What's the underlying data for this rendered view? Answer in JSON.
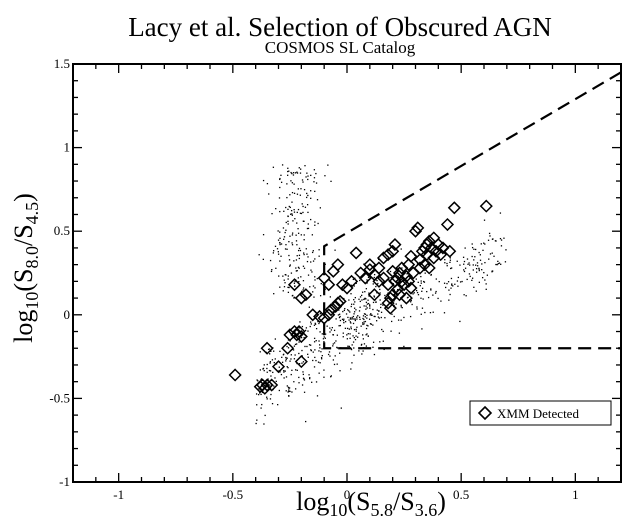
{
  "chart_data": {
    "type": "scatter",
    "title": "Lacy et al. Selection of Obscured AGN",
    "subtitle": "COSMOS SL Catalog",
    "xlabel": {
      "pre": "log",
      "base": "10",
      "open": "(S",
      "s1": "5.8",
      "mid": "/S",
      "s2": "3.6",
      "close": ")"
    },
    "ylabel": {
      "pre": "log",
      "base": "10",
      "open": "(S",
      "s1": "8.0",
      "mid": "/S",
      "s2": "4.5",
      "close": ")"
    },
    "xlim": [
      -1.2,
      1.2
    ],
    "ylim": [
      -1.0,
      1.5
    ],
    "x_ticks": [
      {
        "v": -1,
        "t": "-1"
      },
      {
        "v": -0.5,
        "t": "-0.5"
      },
      {
        "v": 0,
        "t": "0"
      },
      {
        "v": 0.5,
        "t": "0.5"
      },
      {
        "v": 1,
        "t": "1"
      }
    ],
    "y_ticks": [
      {
        "v": -1,
        "t": "-1"
      },
      {
        "v": -0.5,
        "t": "-0.5"
      },
      {
        "v": 0,
        "t": "0"
      },
      {
        "v": 0.5,
        "t": "0.5"
      },
      {
        "v": 1,
        "t": "1"
      },
      {
        "v": 1.5,
        "t": "1.5"
      }
    ],
    "grid": false,
    "legend_position": "bottom-right",
    "legend": [
      {
        "label": "XMM Detected",
        "marker": "diamond"
      }
    ],
    "selection_boundary": [
      [
        1.2,
        1.45
      ],
      [
        -0.1,
        0.41
      ],
      [
        -0.1,
        -0.2
      ],
      [
        1.2,
        -0.2
      ]
    ],
    "series": [
      {
        "label": "XMM Detected",
        "marker": "diamond",
        "points": [
          [
            -0.49,
            -0.36
          ],
          [
            -0.38,
            -0.43
          ],
          [
            -0.37,
            -0.42
          ],
          [
            -0.36,
            -0.44
          ],
          [
            -0.35,
            -0.42
          ],
          [
            -0.35,
            -0.2
          ],
          [
            -0.33,
            -0.42
          ],
          [
            -0.3,
            -0.31
          ],
          [
            -0.26,
            -0.2
          ],
          [
            -0.25,
            -0.12
          ],
          [
            -0.23,
            -0.1
          ],
          [
            -0.22,
            -0.12
          ],
          [
            -0.21,
            -0.1
          ],
          [
            -0.2,
            -0.28
          ],
          [
            -0.2,
            -0.13
          ],
          [
            -0.23,
            0.18
          ],
          [
            -0.2,
            0.1
          ],
          [
            -0.18,
            0.12
          ],
          [
            -0.15,
            0.0
          ],
          [
            -0.12,
            -0.01
          ],
          [
            -0.1,
            -0.02
          ],
          [
            -0.08,
            0.0
          ],
          [
            -0.07,
            0.03
          ],
          [
            -0.05,
            0.05
          ],
          [
            -0.04,
            0.07
          ],
          [
            -0.03,
            0.08
          ],
          [
            -0.1,
            0.22
          ],
          [
            -0.08,
            0.18
          ],
          [
            -0.06,
            0.26
          ],
          [
            -0.04,
            0.3
          ],
          [
            -0.02,
            0.18
          ],
          [
            0.0,
            0.16
          ],
          [
            0.02,
            0.2
          ],
          [
            0.04,
            0.37
          ],
          [
            0.06,
            0.25
          ],
          [
            0.08,
            0.22
          ],
          [
            0.1,
            0.27
          ],
          [
            0.1,
            0.3
          ],
          [
            0.12,
            0.24
          ],
          [
            0.12,
            0.12
          ],
          [
            0.14,
            0.2
          ],
          [
            0.14,
            0.28
          ],
          [
            0.16,
            0.22
          ],
          [
            0.16,
            0.34
          ],
          [
            0.18,
            0.36
          ],
          [
            0.18,
            0.18
          ],
          [
            0.18,
            0.07
          ],
          [
            0.19,
            0.1
          ],
          [
            0.19,
            0.04
          ],
          [
            0.2,
            0.12
          ],
          [
            0.2,
            0.26
          ],
          [
            0.2,
            0.38
          ],
          [
            0.21,
            0.42
          ],
          [
            0.21,
            0.2
          ],
          [
            0.22,
            0.22
          ],
          [
            0.22,
            0.15
          ],
          [
            0.23,
            0.25
          ],
          [
            0.23,
            0.12
          ],
          [
            0.24,
            0.28
          ],
          [
            0.24,
            0.2
          ],
          [
            0.25,
            0.18
          ],
          [
            0.26,
            0.23
          ],
          [
            0.26,
            0.1
          ],
          [
            0.27,
            0.2
          ],
          [
            0.27,
            0.3
          ],
          [
            0.28,
            0.35
          ],
          [
            0.28,
            0.16
          ],
          [
            0.29,
            0.25
          ],
          [
            0.3,
            0.5
          ],
          [
            0.31,
            0.52
          ],
          [
            0.32,
            0.33
          ],
          [
            0.32,
            0.28
          ],
          [
            0.33,
            0.38
          ],
          [
            0.34,
            0.4
          ],
          [
            0.34,
            0.3
          ],
          [
            0.35,
            0.42
          ],
          [
            0.35,
            0.36
          ],
          [
            0.36,
            0.44
          ],
          [
            0.36,
            0.28
          ],
          [
            0.37,
            0.4
          ],
          [
            0.38,
            0.34
          ],
          [
            0.38,
            0.46
          ],
          [
            0.39,
            0.38
          ],
          [
            0.4,
            0.42
          ],
          [
            0.41,
            0.36
          ],
          [
            0.42,
            0.4
          ],
          [
            0.44,
            0.54
          ],
          [
            0.45,
            0.38
          ],
          [
            0.47,
            0.64
          ],
          [
            0.61,
            0.65
          ]
        ]
      }
    ]
  }
}
